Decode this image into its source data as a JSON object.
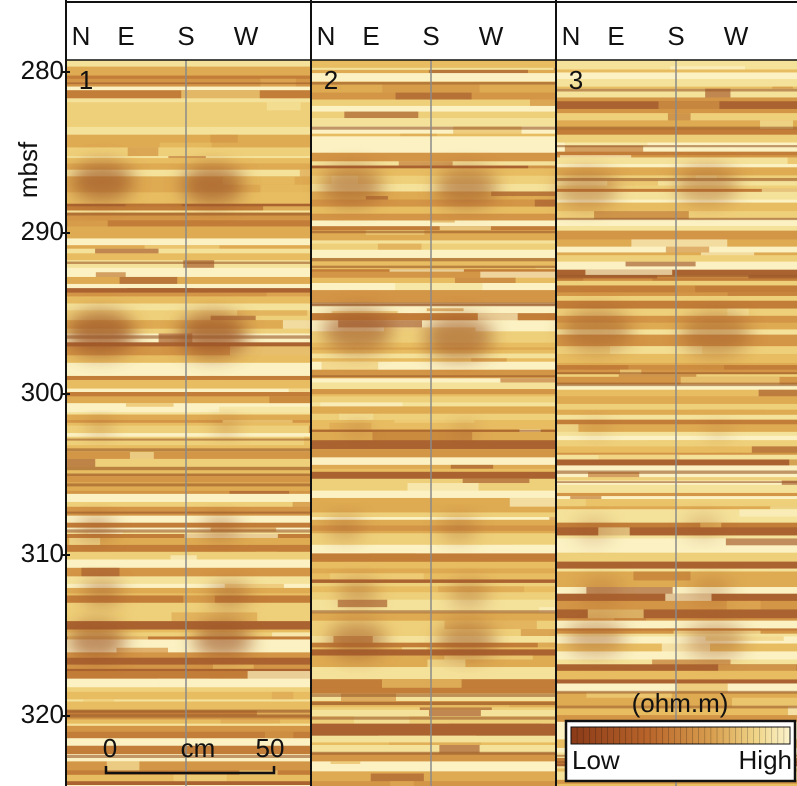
{
  "panels": [
    {
      "label": "1",
      "directions": [
        "N",
        "E",
        "S",
        "W"
      ]
    },
    {
      "label": "2",
      "directions": [
        "N",
        "E",
        "S",
        "W"
      ]
    },
    {
      "label": "3",
      "directions": [
        "N",
        "E",
        "S",
        "W"
      ]
    }
  ],
  "depth_axis": {
    "label": "mbsf",
    "ticks": [
      280,
      290,
      300,
      310,
      320
    ]
  },
  "scale_bar": {
    "start": "0",
    "unit": "cm",
    "end": "50"
  },
  "legend": {
    "unit": "(ohm.m)",
    "low": "Low",
    "high": "High"
  }
}
